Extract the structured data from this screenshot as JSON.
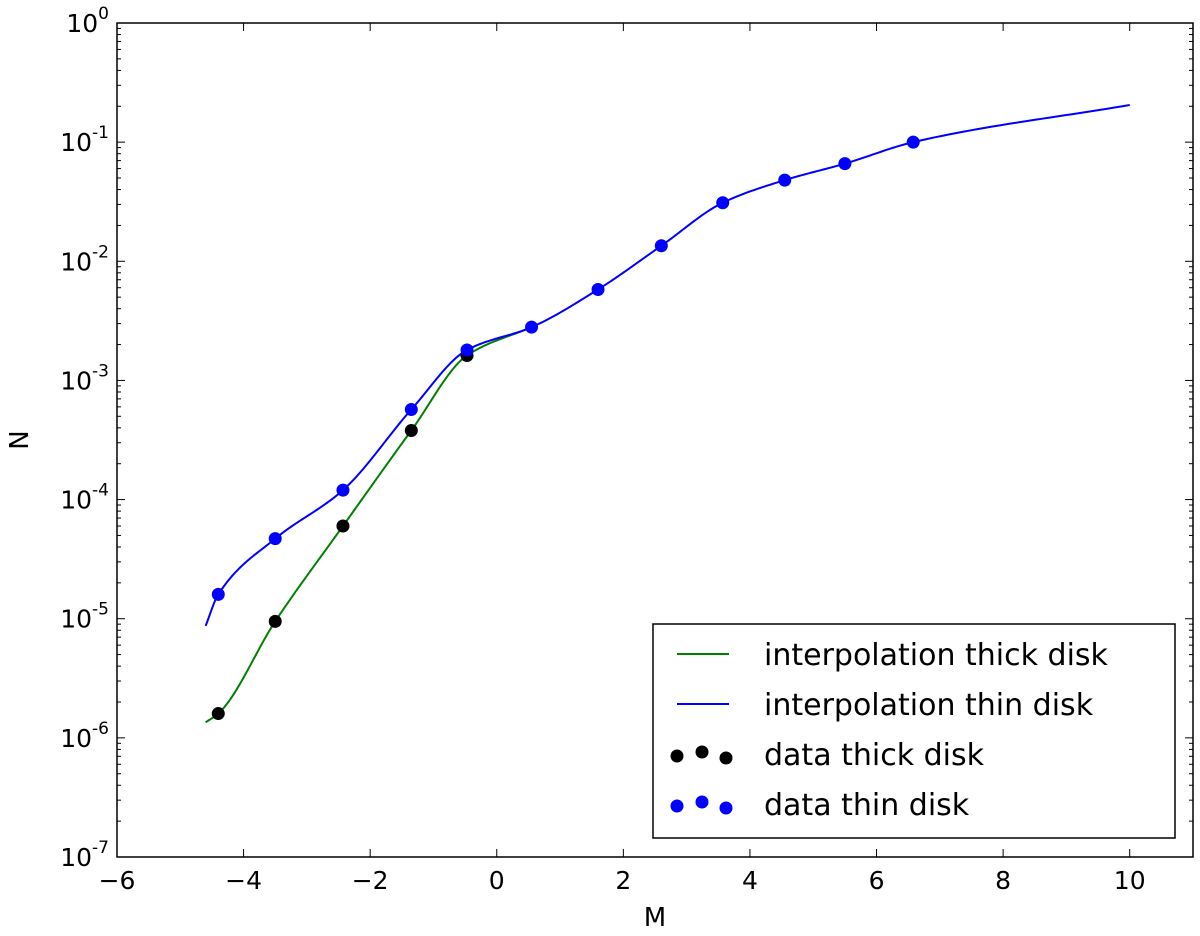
{
  "chart_data": {
    "type": "line",
    "title": "",
    "xlabel": "M",
    "ylabel": "N",
    "xlim": [
      -6,
      11
    ],
    "ylim": [
      1e-07,
      1
    ],
    "yscale": "log",
    "grid": false,
    "x_ticks": [
      -6,
      -4,
      -2,
      0,
      2,
      4,
      6,
      8,
      10
    ],
    "x_tick_labels": [
      "−6",
      "−4",
      "−2",
      "0",
      "2",
      "4",
      "6",
      "8",
      "10"
    ],
    "y_ticks": [
      {
        "value": 1e-07,
        "base": "10",
        "exp": "-7"
      },
      {
        "value": 1e-06,
        "base": "10",
        "exp": "-6"
      },
      {
        "value": 1e-05,
        "base": "10",
        "exp": "-5"
      },
      {
        "value": 0.0001,
        "base": "10",
        "exp": "-4"
      },
      {
        "value": 0.001,
        "base": "10",
        "exp": "-3"
      },
      {
        "value": 0.01,
        "base": "10",
        "exp": "-2"
      },
      {
        "value": 0.1,
        "base": "10",
        "exp": "-1"
      },
      {
        "value": 1,
        "base": "10",
        "exp": "0"
      }
    ],
    "legend": {
      "position": "lower-right",
      "entries": [
        {
          "label": "interpolation thick disk",
          "kind": "line",
          "color": "#008000"
        },
        {
          "label": "interpolation thin disk",
          "kind": "line",
          "color": "#0000ff"
        },
        {
          "label": "data thick disk",
          "kind": "points",
          "color": "#000000"
        },
        {
          "label": "data thin disk",
          "kind": "points",
          "color": "#0000ff"
        }
      ]
    },
    "series": [
      {
        "name": "interpolation thick disk",
        "kind": "line",
        "color": "#008000",
        "x": [
          -4.6,
          -4.4,
          -3.5,
          -2.43,
          -1.35,
          -0.47,
          0.55
        ],
        "y": [
          1.35e-06,
          1.6e-06,
          9.5e-06,
          6e-05,
          0.00038,
          0.00162,
          0.0028
        ]
      },
      {
        "name": "interpolation thin disk",
        "kind": "line",
        "color": "#0000ff",
        "x": [
          -4.6,
          -4.4,
          -3.5,
          -2.43,
          -1.35,
          -0.47,
          0.55,
          1.6,
          2.6,
          3.57,
          4.55,
          5.5,
          6.58,
          10.0
        ],
        "y": [
          8.7e-06,
          1.6e-05,
          4.7e-05,
          0.00012,
          0.00057,
          0.0018,
          0.0028,
          0.0058,
          0.0135,
          0.031,
          0.048,
          0.066,
          0.1,
          0.205
        ]
      },
      {
        "name": "data thick disk",
        "kind": "points",
        "color": "#000000",
        "x": [
          -4.4,
          -3.5,
          -2.43,
          -1.35,
          -0.47
        ],
        "y": [
          1.6e-06,
          9.5e-06,
          6e-05,
          0.00038,
          0.00162
        ]
      },
      {
        "name": "data thin disk",
        "kind": "points",
        "color": "#0000ff",
        "x": [
          -4.4,
          -3.5,
          -2.43,
          -1.35,
          -0.47,
          0.55,
          1.6,
          2.6,
          3.57,
          4.55,
          5.5,
          6.58
        ],
        "y": [
          1.6e-05,
          4.7e-05,
          0.00012,
          0.00057,
          0.0018,
          0.0028,
          0.0058,
          0.0135,
          0.031,
          0.048,
          0.066,
          0.1
        ]
      }
    ]
  }
}
